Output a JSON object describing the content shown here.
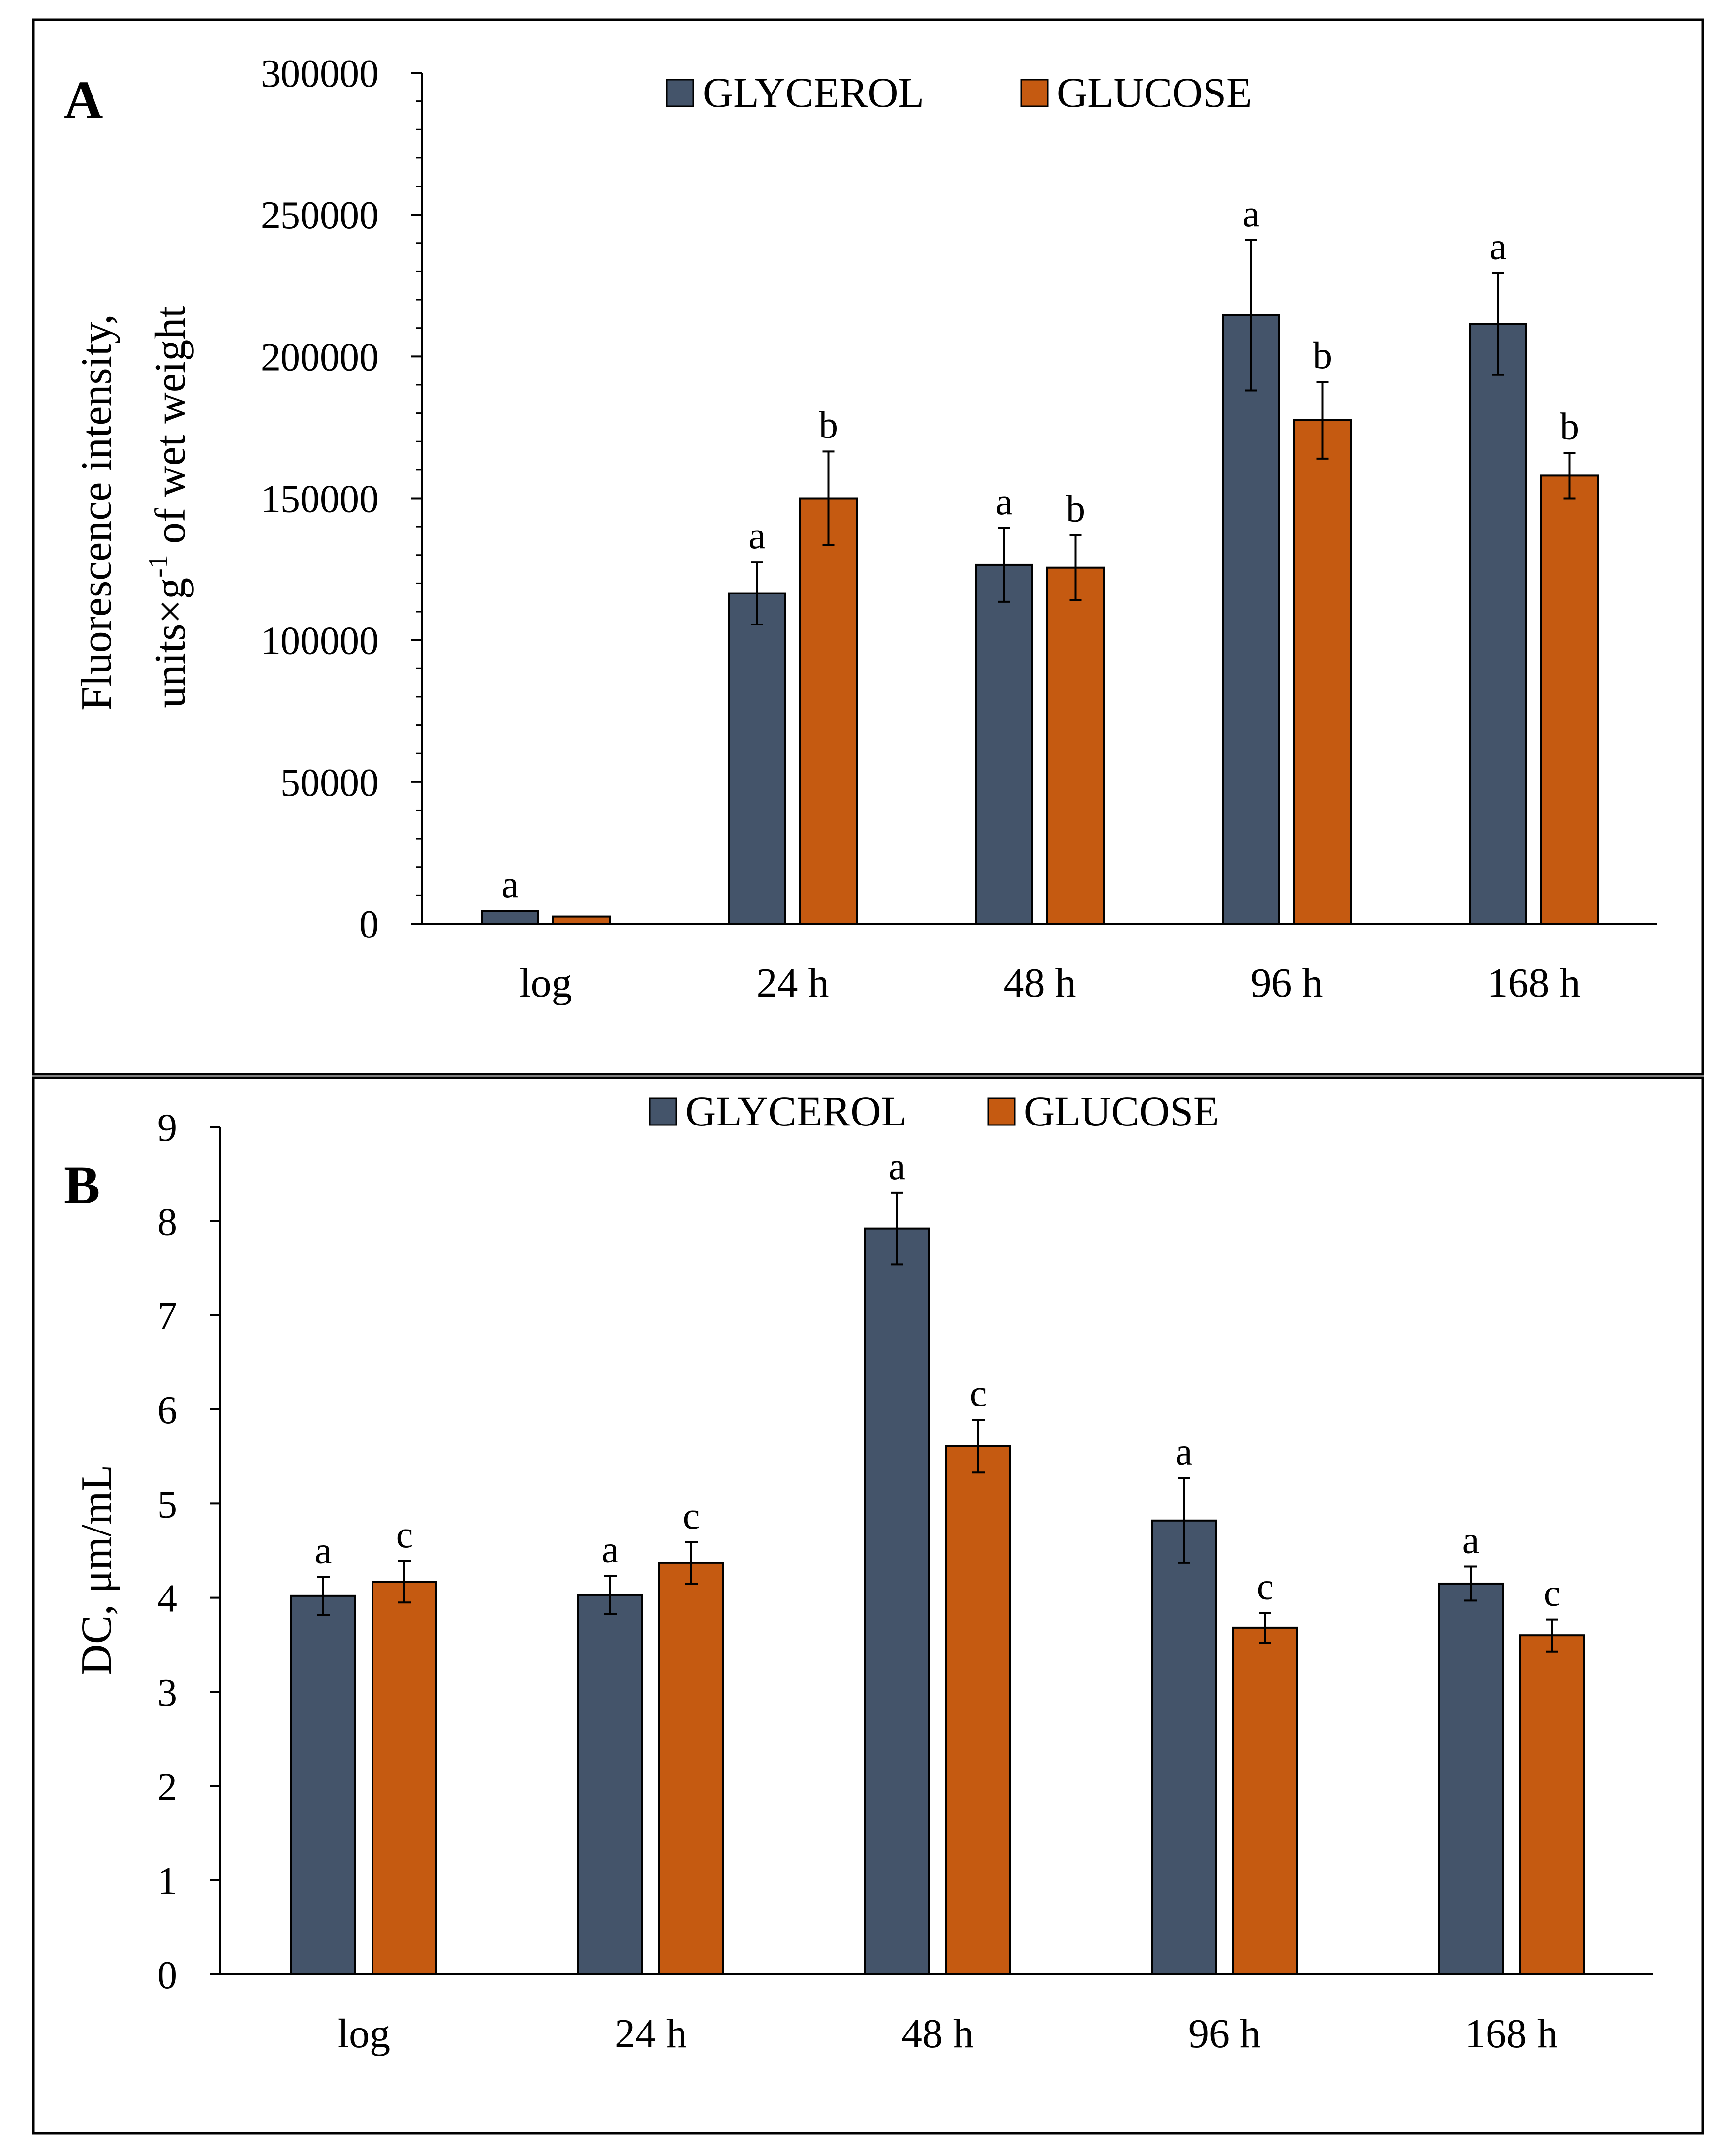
{
  "chart_data": [
    {
      "type": "bar",
      "panel_label": "A",
      "title": "",
      "xlabel": "",
      "ylabel_line1": "Fluorescence intensity,",
      "ylabel_line2_prefix": "units×g",
      "ylabel_line2_sup": "-1",
      "ylabel_line2_suffix": " of wet weight",
      "ylim": [
        0,
        300000
      ],
      "major_ticks": [
        0,
        50000,
        100000,
        150000,
        200000,
        250000,
        300000
      ],
      "tick_labels": [
        "0",
        "50000",
        "100000",
        "150000",
        "200000",
        "250000",
        "300000"
      ],
      "minor_ticks_per_major": 5,
      "legend_position": "top-center",
      "categories": [
        "log",
        "24 h",
        "48 h",
        "96 h",
        "168 h"
      ],
      "series": [
        {
          "name": "GLYCEROL",
          "color": "#44546a",
          "values": [
            4500,
            116500,
            126500,
            214500,
            211500
          ],
          "errors": [
            0,
            11000,
            13000,
            26500,
            18000
          ],
          "sig": [
            "a",
            "a",
            "a",
            "a",
            "a"
          ]
        },
        {
          "name": "GLUCOSE",
          "color": "#c55a11",
          "values": [
            2500,
            150000,
            125500,
            177500,
            158000
          ],
          "errors": [
            0,
            16500,
            11500,
            13500,
            8000
          ],
          "sig": [
            "",
            "b",
            "b",
            "b",
            "b"
          ]
        }
      ]
    },
    {
      "type": "bar",
      "panel_label": "B",
      "title": "",
      "xlabel": "",
      "ylabel": "DC, μm/mL",
      "ylim": [
        0,
        9
      ],
      "major_ticks": [
        0,
        1,
        2,
        3,
        4,
        5,
        6,
        7,
        8,
        9
      ],
      "tick_labels": [
        "0",
        "1",
        "2",
        "3",
        "4",
        "5",
        "6",
        "7",
        "8",
        "9"
      ],
      "legend_position": "top-center",
      "categories": [
        "log",
        "24 h",
        "48 h",
        "96 h",
        "168 h"
      ],
      "series": [
        {
          "name": "GLYCEROL",
          "color": "#44546a",
          "values": [
            4.02,
            4.03,
            7.92,
            4.82,
            4.15
          ],
          "errors": [
            0.2,
            0.2,
            0.38,
            0.45,
            0.18
          ],
          "sig": [
            "a",
            "a",
            "a",
            "a",
            "a"
          ]
        },
        {
          "name": "GLUCOSE",
          "color": "#c55a11",
          "values": [
            4.17,
            4.37,
            5.61,
            3.68,
            3.6
          ],
          "errors": [
            0.22,
            0.22,
            0.28,
            0.16,
            0.17
          ],
          "sig": [
            "c",
            "c",
            "c",
            "c",
            "c"
          ]
        }
      ]
    }
  ]
}
